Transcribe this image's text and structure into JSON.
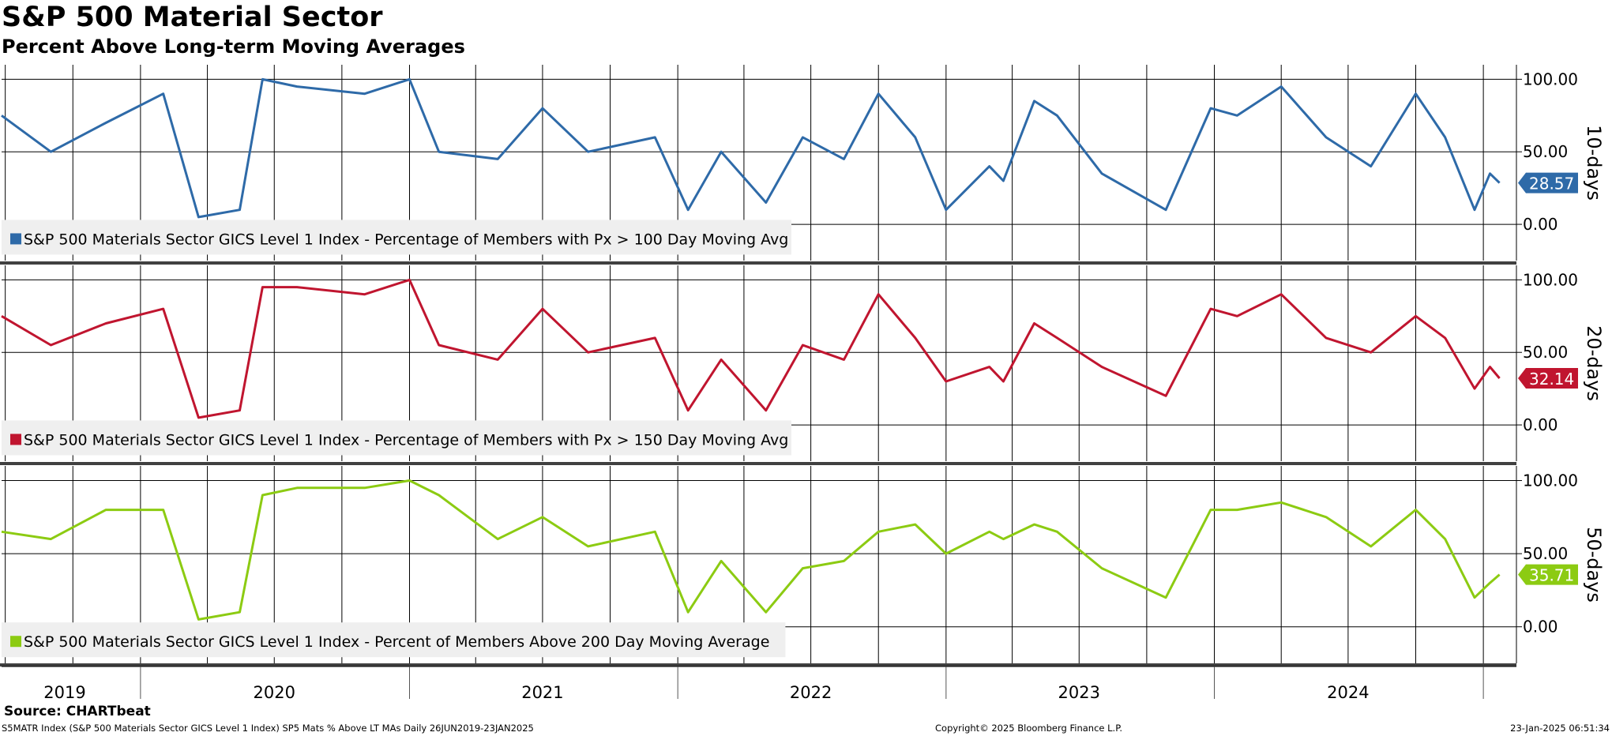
{
  "header": {
    "title": "S&P 500 Material Sector",
    "subtitle": "Percent Above Long-term Moving Averages"
  },
  "footer": {
    "source": "Source: CHARTbeat",
    "description": "S5MATR Index (S&P 500 Materials Sector GICS Level 1 Index) SP5 Mats % Above LT MAs  Daily 26JUN2019-23JAN2025",
    "copyright": "Copyright© 2025 Bloomberg Finance L.P.",
    "timestamp": "23-Jan-2025 06:51:34"
  },
  "chart_data": [
    {
      "type": "line",
      "panel_label": "10-days",
      "legend": "S&P 500 Materials Sector GICS Level 1 Index - Percentage of Members with Px > 100 Day Moving Avg",
      "color": "#2e6aa8",
      "last_value_label": "28.57",
      "ylim": [
        -25,
        110
      ],
      "yticks": [
        "100.00",
        "50.00",
        "0.00"
      ],
      "x": [
        "2019-06-26",
        "2019-09-01",
        "2019-11-15",
        "2020-02-01",
        "2020-03-20",
        "2020-05-15",
        "2020-06-15",
        "2020-08-01",
        "2020-11-01",
        "2021-01-01",
        "2021-02-10",
        "2021-05-01",
        "2021-07-01",
        "2021-09-01",
        "2021-12-01",
        "2022-01-15",
        "2022-03-01",
        "2022-05-01",
        "2022-06-20",
        "2022-08-15",
        "2022-10-01",
        "2022-11-20",
        "2023-01-01",
        "2023-03-01",
        "2023-03-20",
        "2023-05-01",
        "2023-06-01",
        "2023-08-01",
        "2023-10-27",
        "2023-12-27",
        "2024-02-01",
        "2024-04-01",
        "2024-06-01",
        "2024-08-01",
        "2024-10-01",
        "2024-11-10",
        "2024-12-20",
        "2025-01-10",
        "2025-01-23"
      ],
      "values": [
        75,
        50,
        70,
        90,
        5,
        10,
        100,
        95,
        90,
        100,
        50,
        45,
        80,
        50,
        60,
        10,
        50,
        15,
        60,
        45,
        90,
        60,
        10,
        40,
        30,
        85,
        75,
        35,
        10,
        80,
        75,
        95,
        60,
        40,
        90,
        60,
        10,
        35,
        28.57
      ]
    },
    {
      "type": "line",
      "panel_label": "20-days",
      "legend": "S&P 500 Materials Sector GICS Level 1 Index - Percentage of Members with Px > 150 Day Moving Avg",
      "color": "#c0152f",
      "last_value_label": "32.14",
      "ylim": [
        -25,
        110
      ],
      "yticks": [
        "100.00",
        "50.00",
        "0.00"
      ],
      "x": [
        "2019-06-26",
        "2019-09-01",
        "2019-11-15",
        "2020-02-01",
        "2020-03-20",
        "2020-05-15",
        "2020-06-15",
        "2020-08-01",
        "2020-11-01",
        "2021-01-01",
        "2021-02-10",
        "2021-05-01",
        "2021-07-01",
        "2021-09-01",
        "2021-12-01",
        "2022-01-15",
        "2022-03-01",
        "2022-05-01",
        "2022-06-20",
        "2022-08-15",
        "2022-10-01",
        "2022-11-20",
        "2023-01-01",
        "2023-03-01",
        "2023-03-20",
        "2023-05-01",
        "2023-06-01",
        "2023-08-01",
        "2023-10-27",
        "2023-12-27",
        "2024-02-01",
        "2024-04-01",
        "2024-06-01",
        "2024-08-01",
        "2024-10-01",
        "2024-11-10",
        "2024-12-20",
        "2025-01-10",
        "2025-01-23"
      ],
      "values": [
        75,
        55,
        70,
        80,
        5,
        10,
        95,
        95,
        90,
        100,
        55,
        45,
        80,
        50,
        60,
        10,
        45,
        10,
        55,
        45,
        90,
        60,
        30,
        40,
        30,
        70,
        60,
        40,
        20,
        80,
        75,
        90,
        60,
        50,
        75,
        60,
        25,
        40,
        32.14
      ]
    },
    {
      "type": "line",
      "panel_label": "50-days",
      "legend": "S&P 500 Materials Sector GICS Level 1 Index - Percent of Members Above 200 Day Moving Average",
      "color": "#8ccb12",
      "last_value_label": "35.71",
      "ylim": [
        -25,
        110
      ],
      "yticks": [
        "100.00",
        "50.00",
        "0.00"
      ],
      "x": [
        "2019-06-26",
        "2019-09-01",
        "2019-11-15",
        "2020-02-01",
        "2020-03-20",
        "2020-05-15",
        "2020-06-15",
        "2020-08-01",
        "2020-11-01",
        "2021-01-01",
        "2021-02-10",
        "2021-05-01",
        "2021-07-01",
        "2021-09-01",
        "2021-12-01",
        "2022-01-15",
        "2022-03-01",
        "2022-05-01",
        "2022-06-20",
        "2022-08-15",
        "2022-10-01",
        "2022-11-20",
        "2023-01-01",
        "2023-03-01",
        "2023-03-20",
        "2023-05-01",
        "2023-06-01",
        "2023-08-01",
        "2023-10-27",
        "2023-12-27",
        "2024-02-01",
        "2024-04-01",
        "2024-06-01",
        "2024-08-01",
        "2024-10-01",
        "2024-11-10",
        "2024-12-20",
        "2025-01-10",
        "2025-01-23"
      ],
      "values": [
        65,
        60,
        80,
        80,
        5,
        10,
        90,
        95,
        95,
        100,
        90,
        60,
        75,
        55,
        65,
        10,
        45,
        10,
        40,
        45,
        65,
        70,
        50,
        65,
        60,
        70,
        65,
        40,
        20,
        80,
        80,
        85,
        75,
        55,
        80,
        60,
        20,
        30,
        35.71
      ]
    }
  ],
  "x_axis": {
    "year_labels": [
      "2019",
      "2020",
      "2021",
      "2022",
      "2023",
      "2024"
    ],
    "year_label_dates": [
      "2019-09-20",
      "2020-07-01",
      "2021-07-01",
      "2022-07-01",
      "2023-07-01",
      "2024-07-01"
    ],
    "year_boundaries": [
      "2020-01-01",
      "2021-01-01",
      "2022-01-01",
      "2023-01-01",
      "2024-01-01",
      "2025-01-01"
    ],
    "grid_dates": [
      "2019-07-01",
      "2019-10-01",
      "2020-01-01",
      "2020-04-01",
      "2020-07-01",
      "2020-10-01",
      "2021-01-01",
      "2021-04-01",
      "2021-07-01",
      "2021-10-01",
      "2022-01-01",
      "2022-04-01",
      "2022-07-01",
      "2022-10-01",
      "2023-01-01",
      "2023-04-01",
      "2023-07-01",
      "2023-10-01",
      "2024-01-01",
      "2024-04-01",
      "2024-07-01",
      "2024-10-01",
      "2025-01-01"
    ],
    "range": [
      "2019-06-26",
      "2025-02-15"
    ]
  }
}
